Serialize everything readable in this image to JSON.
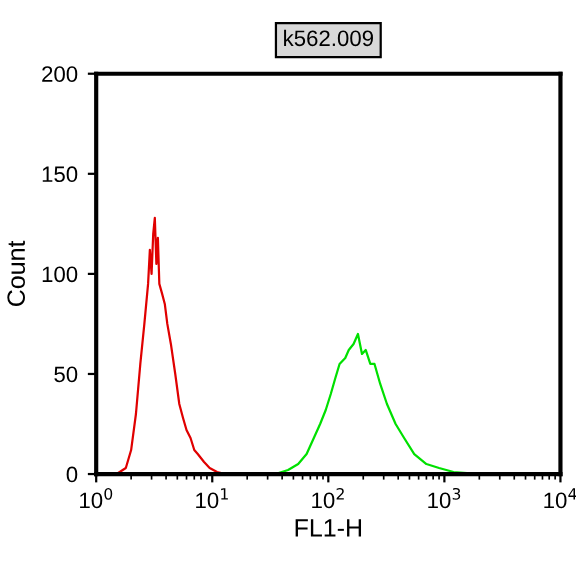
{
  "chart_data": {
    "type": "line",
    "title": "k562.009",
    "xlabel": "FL1-H",
    "ylabel": "Count",
    "log": "x",
    "xlim": [
      1,
      10000
    ],
    "ylim": [
      0,
      200
    ],
    "xticks": [
      {
        "value": 1,
        "label": "10$^{0}$"
      },
      {
        "value": 10,
        "label": "10$^{1}$"
      },
      {
        "value": 100,
        "label": "10$^{2}$"
      },
      {
        "value": 1000,
        "label": "10$^{3}$"
      },
      {
        "value": 10000,
        "label": "10$^{4}$"
      }
    ],
    "yticks": [
      0,
      50,
      100,
      150,
      200
    ],
    "grid": false,
    "legend": false,
    "series": [
      {
        "color": "#e00000",
        "x": [
          1.5,
          1.8,
          2.0,
          2.2,
          2.4,
          2.6,
          2.8,
          2.9,
          3.0,
          3.1,
          3.2,
          3.3,
          3.4,
          3.5,
          3.7,
          3.9,
          4.1,
          4.4,
          4.8,
          5.2,
          5.6,
          6.0,
          6.5,
          7.0,
          7.5,
          8.5,
          9.5,
          11,
          13
        ],
        "values": [
          0,
          3,
          12,
          30,
          55,
          75,
          95,
          112,
          100,
          120,
          128,
          105,
          118,
          95,
          90,
          85,
          75,
          65,
          50,
          35,
          28,
          22,
          18,
          12,
          10,
          6,
          3,
          1,
          0
        ]
      },
      {
        "color": "#00e000",
        "x": [
          35,
          45,
          55,
          65,
          75,
          85,
          95,
          105,
          115,
          125,
          140,
          150,
          165,
          180,
          195,
          210,
          230,
          250,
          280,
          320,
          380,
          450,
          550,
          700,
          900,
          1200,
          2000
        ],
        "values": [
          0,
          2,
          5,
          10,
          18,
          25,
          32,
          40,
          48,
          55,
          58,
          62,
          65,
          70,
          60,
          62,
          55,
          55,
          45,
          35,
          25,
          18,
          10,
          5,
          3,
          1,
          0
        ]
      }
    ]
  }
}
